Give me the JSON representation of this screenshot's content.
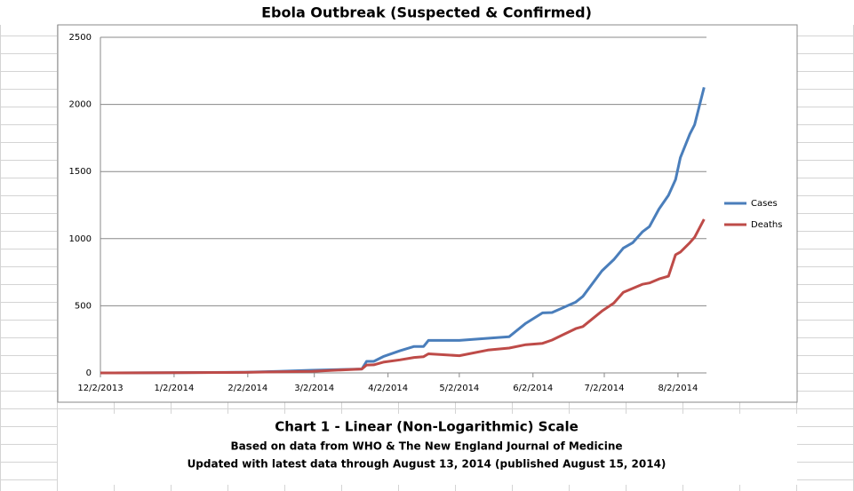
{
  "chart_data": {
    "type": "line",
    "title": "Ebola Outbreak (Suspected & Confirmed)",
    "subtitle": "Chart 1 - Linear (Non-Logarithmic) Scale",
    "notes": [
      "Based on data from WHO & The New England Journal of Medicine",
      "Updated with latest data through August 13, 2014 (published August 15, 2014)"
    ],
    "x": [
      "2013-12-02",
      "2014-01-01",
      "2014-02-01",
      "2014-02-15",
      "2014-03-01",
      "2014-03-22",
      "2014-03-24",
      "2014-03-27",
      "2014-03-31",
      "2014-04-07",
      "2014-04-13",
      "2014-04-17",
      "2014-04-19",
      "2014-05-02",
      "2014-05-14",
      "2014-05-23",
      "2014-05-30",
      "2014-06-06",
      "2014-06-10",
      "2014-06-20",
      "2014-06-23",
      "2014-07-01",
      "2014-07-06",
      "2014-07-10",
      "2014-07-14",
      "2014-07-18",
      "2014-07-21",
      "2014-07-25",
      "2014-07-29",
      "2014-08-01",
      "2014-08-03",
      "2014-08-07",
      "2014-08-09",
      "2014-08-13"
    ],
    "series": [
      {
        "name": "Cases",
        "color": "#4a7ebb",
        "values": [
          0,
          2,
          5,
          12,
          20,
          29,
          86,
          86,
          122,
          165,
          197,
          197,
          242,
          242,
          258,
          270,
          370,
          447,
          450,
          528,
          570,
          760,
          844,
          930,
          970,
          1050,
          1090,
          1220,
          1323,
          1440,
          1603,
          1780,
          1848,
          2127
        ]
      },
      {
        "name": "Deaths",
        "color": "#be4b48",
        "values": [
          0,
          2,
          4,
          8,
          12,
          29,
          59,
          60,
          80,
          97,
          115,
          121,
          142,
          128,
          170,
          185,
          210,
          220,
          245,
          330,
          345,
          460,
          520,
          600,
          630,
          660,
          670,
          700,
          720,
          880,
          900,
          970,
          1010,
          1145
        ]
      }
    ],
    "xlim": [
      "2013-12-02",
      "2014-08-14"
    ],
    "xticks": [
      {
        "value": "2013-12-02",
        "label": "12/2/2013"
      },
      {
        "value": "2014-01-02",
        "label": "1/2/2014"
      },
      {
        "value": "2014-02-02",
        "label": "2/2/2014"
      },
      {
        "value": "2014-03-02",
        "label": "3/2/2014"
      },
      {
        "value": "2014-04-02",
        "label": "4/2/2014"
      },
      {
        "value": "2014-05-02",
        "label": "5/2/2014"
      },
      {
        "value": "2014-06-02",
        "label": "6/2/2014"
      },
      {
        "value": "2014-07-02",
        "label": "7/2/2014"
      },
      {
        "value": "2014-08-02",
        "label": "8/2/2014"
      }
    ],
    "ylim": [
      0,
      2500
    ],
    "yticks": [
      0,
      500,
      1000,
      1500,
      2000,
      2500
    ],
    "grid": true,
    "legend": "right"
  }
}
